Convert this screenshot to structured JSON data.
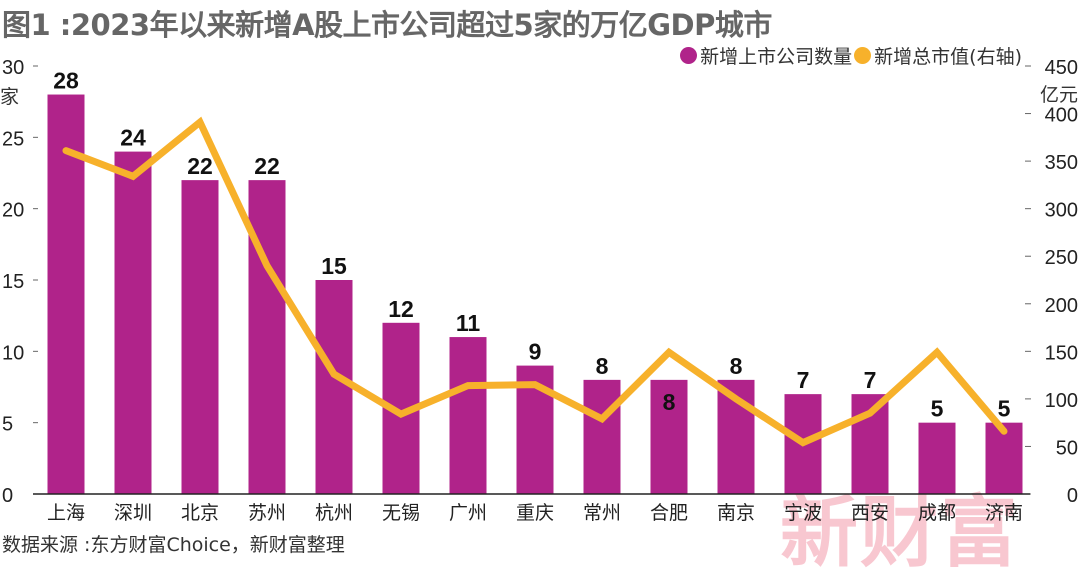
{
  "chart_data": {
    "type": "bar+line",
    "title": "图1 :2023年以来新增A股上市公司超过5家的万亿GDP城市",
    "categories": [
      "上海",
      "深圳",
      "北京",
      "苏州",
      "杭州",
      "无锡",
      "广州",
      "重庆",
      "常州",
      "合肥",
      "南京",
      "宁波",
      "西安",
      "成都",
      "济南"
    ],
    "series": [
      {
        "name": "新增上市公司数量",
        "type": "bar",
        "axis": "left",
        "color": "#b0238a",
        "values": [
          28,
          24,
          22,
          22,
          15,
          12,
          11,
          9,
          8,
          8,
          8,
          7,
          7,
          5,
          5
        ]
      },
      {
        "name": "新增总市值(右轴)",
        "type": "line",
        "axis": "right",
        "color": "#f7b12b",
        "values": [
          361,
          334,
          391,
          240,
          126,
          84,
          114,
          115,
          79,
          149,
          100,
          54,
          85,
          149,
          66
        ]
      }
    ],
    "left_axis": {
      "unit": "家",
      "range": [
        0,
        30
      ],
      "ticks": [
        0,
        5,
        10,
        15,
        20,
        25,
        30
      ]
    },
    "right_axis": {
      "unit": "亿元",
      "range": [
        0,
        450
      ],
      "ticks": [
        0,
        50,
        100,
        150,
        200,
        250,
        300,
        350,
        400,
        450
      ]
    },
    "legend_placement": "top-right",
    "grid": false
  },
  "source": "数据来源 :东方财富Choice，新财富整理",
  "watermark": "新财富"
}
